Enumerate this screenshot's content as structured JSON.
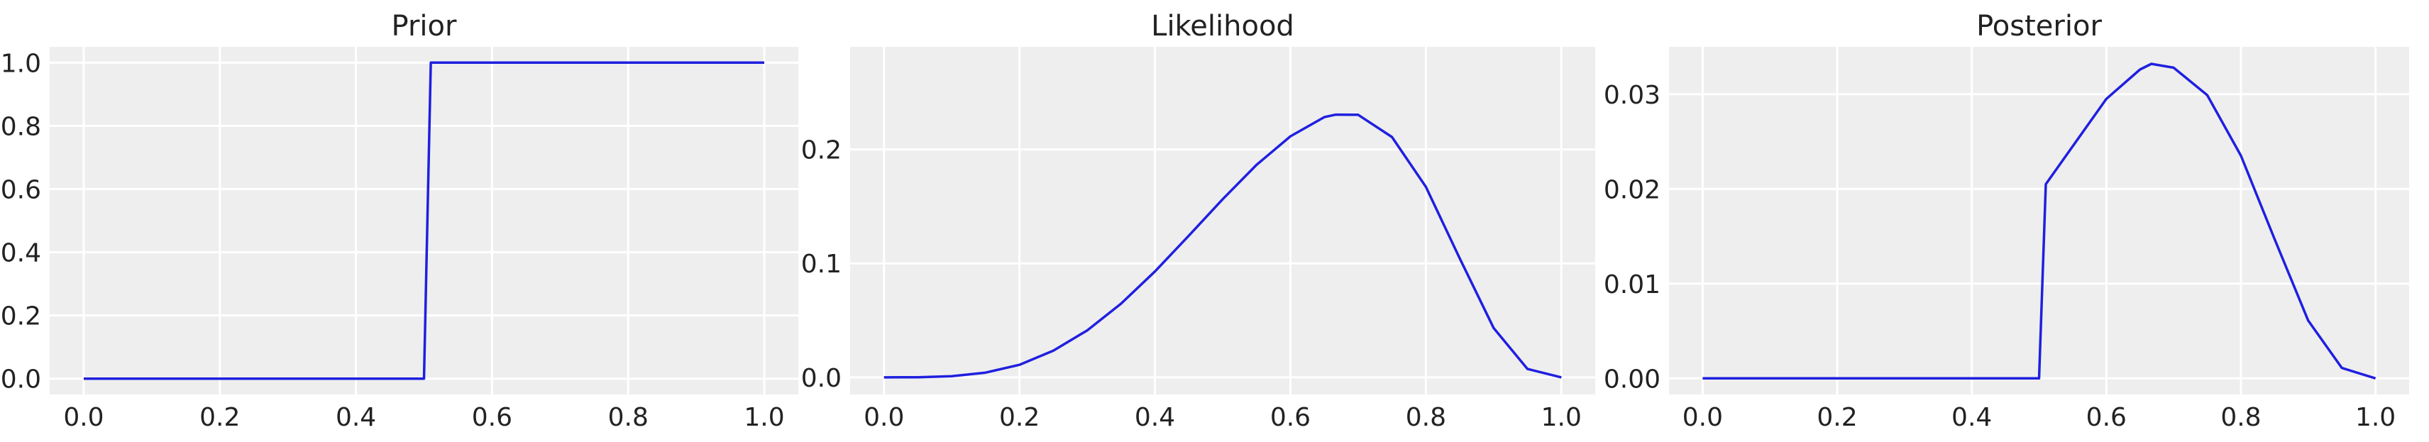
{
  "colors": {
    "background": "#ffffff",
    "plot_background": "#eeeeee",
    "grid": "#ffffff",
    "line": "#1f1fe0",
    "text": "#222222"
  },
  "chart_data": [
    {
      "type": "line",
      "title": "Prior",
      "xlim": [
        -0.05,
        1.05
      ],
      "ylim": [
        -0.05,
        1.05
      ],
      "xticks": [
        0.0,
        0.2,
        0.4,
        0.6,
        0.8,
        1.0
      ],
      "xtick_labels": [
        "0.0",
        "0.2",
        "0.4",
        "0.6",
        "0.8",
        "1.0"
      ],
      "yticks": [
        0.0,
        0.2,
        0.4,
        0.6,
        0.8,
        1.0
      ],
      "ytick_labels": [
        "0.0",
        "0.2",
        "0.4",
        "0.6",
        "0.8",
        "1.0"
      ],
      "grid": true,
      "series": [
        {
          "x": [
            0.0,
            0.49,
            0.5,
            0.51,
            1.0
          ],
          "y": [
            0.0,
            0.0,
            0.0,
            1.0,
            1.0
          ]
        }
      ]
    },
    {
      "type": "line",
      "title": "Likelihood",
      "xlim": [
        -0.05,
        1.05
      ],
      "ylim": [
        -0.015,
        0.29
      ],
      "xticks": [
        0.0,
        0.2,
        0.4,
        0.6,
        0.8,
        1.0
      ],
      "xtick_labels": [
        "0.0",
        "0.2",
        "0.4",
        "0.6",
        "0.8",
        "1.0"
      ],
      "yticks": [
        0.0,
        0.1,
        0.2
      ],
      "ytick_labels": [
        "0.0",
        "0.1",
        "0.2"
      ],
      "grid": true,
      "series": [
        {
          "x": [
            0.0,
            0.05,
            0.1,
            0.15,
            0.2,
            0.25,
            0.3,
            0.35,
            0.4,
            0.45,
            0.5,
            0.55,
            0.6,
            0.65,
            0.667,
            0.7,
            0.75,
            0.8,
            0.85,
            0.9,
            0.95,
            1.0
          ],
          "y": [
            0.0,
            0.0001,
            0.001,
            0.0042,
            0.011,
            0.0234,
            0.0412,
            0.0647,
            0.0929,
            0.1243,
            0.1563,
            0.1864,
            0.2115,
            0.2283,
            0.2305,
            0.2304,
            0.2109,
            0.1671,
            0.1044,
            0.0434,
            0.0074,
            0.0
          ]
        }
      ]
    },
    {
      "type": "line",
      "title": "Posterior",
      "xlim": [
        -0.05,
        1.05
      ],
      "ylim": [
        -0.0017,
        0.035
      ],
      "xticks": [
        0.0,
        0.2,
        0.4,
        0.6,
        0.8,
        1.0
      ],
      "xtick_labels": [
        "0.0",
        "0.2",
        "0.4",
        "0.6",
        "0.8",
        "1.0"
      ],
      "yticks": [
        0.0,
        0.01,
        0.02,
        0.03
      ],
      "ytick_labels": [
        "0.00",
        "0.01",
        "0.02",
        "0.03"
      ],
      "grid": true,
      "series": [
        {
          "x": [
            0.0,
            0.49,
            0.5,
            0.51,
            0.55,
            0.6,
            0.65,
            0.667,
            0.7,
            0.75,
            0.8,
            0.85,
            0.9,
            0.95,
            1.0
          ],
          "y": [
            0.0,
            0.0,
            0.0,
            0.0205,
            0.0245,
            0.0295,
            0.0326,
            0.0332,
            0.0328,
            0.0299,
            0.0235,
            0.0147,
            0.0061,
            0.0011,
            0.0
          ]
        }
      ]
    }
  ]
}
